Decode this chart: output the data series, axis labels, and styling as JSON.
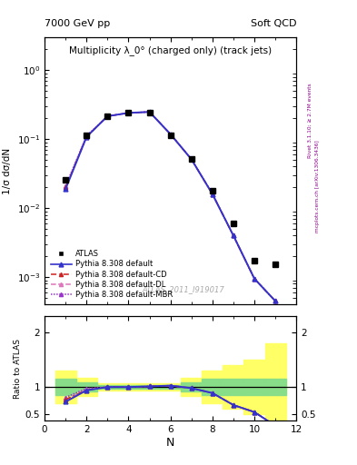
{
  "title_left": "7000 GeV pp",
  "title_right": "Soft QCD",
  "main_title": "Multiplicity λ_0° (charged only) (track jets)",
  "watermark": "ATLAS_2011_I919017",
  "right_label_top": "Rivet 3.1.10; ≥ 2.7M events",
  "right_label_bottom": "mcplots.cern.ch [arXiv:1306.3436]",
  "ylabel_main": "1/σ dσ/dN",
  "ylabel_ratio": "Ratio to ATLAS",
  "xlabel": "N",
  "atlas_x": [
    1,
    2,
    3,
    4,
    5,
    6,
    7,
    8,
    9,
    10,
    11
  ],
  "atlas_y": [
    0.026,
    0.115,
    0.215,
    0.24,
    0.245,
    0.115,
    0.052,
    0.018,
    0.006,
    0.00175,
    0.00155
  ],
  "pythia_default_x": [
    1,
    2,
    3,
    4,
    5,
    6,
    7,
    8,
    9,
    10,
    11
  ],
  "pythia_default_y": [
    0.019,
    0.108,
    0.215,
    0.24,
    0.248,
    0.118,
    0.051,
    0.016,
    0.004,
    0.00095,
    0.00045
  ],
  "pythia_cd_x": [
    1,
    2,
    3,
    4,
    5,
    6,
    7,
    8,
    9,
    10,
    11
  ],
  "pythia_cd_y": [
    0.02,
    0.108,
    0.215,
    0.24,
    0.248,
    0.118,
    0.051,
    0.016,
    0.004,
    0.00095,
    0.00045
  ],
  "pythia_dl_x": [
    1,
    2,
    3,
    4,
    5,
    6,
    7,
    8,
    9,
    10,
    11
  ],
  "pythia_dl_y": [
    0.02,
    0.11,
    0.215,
    0.24,
    0.248,
    0.118,
    0.051,
    0.016,
    0.004,
    0.00095,
    0.00045
  ],
  "pythia_mbr_x": [
    1,
    2,
    3,
    4,
    5,
    6,
    7,
    8,
    9,
    10,
    11
  ],
  "pythia_mbr_y": [
    0.021,
    0.112,
    0.215,
    0.24,
    0.248,
    0.118,
    0.051,
    0.016,
    0.004,
    0.00095,
    0.00045
  ],
  "ratio_default_y": [
    0.73,
    0.94,
    1.0,
    1.0,
    1.012,
    1.026,
    0.98,
    0.89,
    0.67,
    0.54,
    0.29
  ],
  "ratio_cd_y": [
    0.77,
    0.944,
    1.0,
    1.0,
    1.012,
    1.026,
    0.98,
    0.89,
    0.67,
    0.543,
    0.29
  ],
  "ratio_dl_y": [
    0.77,
    0.956,
    1.0,
    1.0,
    1.012,
    1.026,
    0.98,
    0.89,
    0.67,
    0.543,
    0.29
  ],
  "ratio_mbr_y": [
    0.81,
    0.975,
    1.0,
    1.0,
    1.012,
    1.026,
    0.98,
    0.89,
    0.67,
    0.543,
    0.29
  ],
  "yellow_band_edges": [
    0.5,
    1.5,
    2.5,
    3.5,
    4.5,
    5.5,
    6.5,
    7.5,
    8.5,
    9.5,
    10.5,
    11.5
  ],
  "yellow_band_lo": [
    0.7,
    0.83,
    0.93,
    0.93,
    0.93,
    0.93,
    0.83,
    0.7,
    0.6,
    0.5,
    0.4
  ],
  "yellow_band_hi": [
    1.3,
    1.17,
    1.07,
    1.07,
    1.07,
    1.07,
    1.17,
    1.3,
    1.4,
    1.5,
    1.8
  ],
  "green_band_edges": [
    0.5,
    1.5,
    2.5,
    3.5,
    4.5,
    5.5,
    6.5,
    7.5,
    8.5,
    9.5,
    10.5,
    11.5
  ],
  "green_band_lo": [
    0.85,
    0.92,
    0.97,
    0.97,
    0.97,
    0.97,
    0.92,
    0.85,
    0.85,
    0.85,
    0.85
  ],
  "green_band_hi": [
    1.15,
    1.08,
    1.03,
    1.03,
    1.03,
    1.03,
    1.08,
    1.15,
    1.15,
    1.15,
    1.15
  ],
  "color_atlas": "#000000",
  "color_default": "#3333cc",
  "color_cd": "#cc2222",
  "color_dl": "#dd77bb",
  "color_mbr": "#9933cc",
  "xlim": [
    0,
    12
  ],
  "ylim_main_log": [
    0.0004,
    3.0
  ],
  "ylim_ratio": [
    0.38,
    2.3
  ],
  "bg_color": "#ffffff"
}
